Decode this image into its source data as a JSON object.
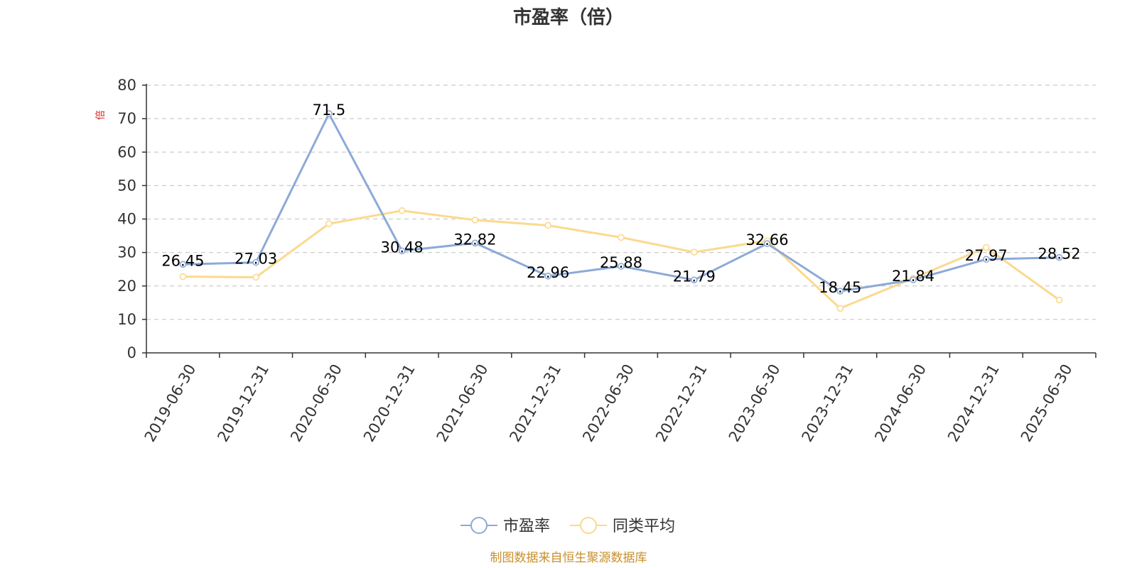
{
  "chart_data": {
    "type": "line",
    "title": "市盈率（倍）",
    "ylabel": "倍",
    "ylim": [
      0,
      80
    ],
    "yticks": [
      0,
      10,
      20,
      30,
      40,
      50,
      60,
      70,
      80
    ],
    "grid": true,
    "legend_position": "bottom",
    "categories": [
      "2019-06-30",
      "2019-12-31",
      "2020-06-30",
      "2020-12-31",
      "2021-06-30",
      "2021-12-31",
      "2022-06-30",
      "2022-12-31",
      "2023-06-30",
      "2023-12-31",
      "2024-06-30",
      "2024-12-31",
      "2025-06-30"
    ],
    "series": [
      {
        "name": "市盈率",
        "color": "#8caad8",
        "values": [
          26.45,
          27.03,
          71.5,
          30.48,
          32.82,
          22.96,
          25.88,
          21.79,
          32.66,
          18.45,
          21.84,
          27.97,
          28.52
        ],
        "labels": [
          "26.45",
          "27.03",
          "71.5",
          "30.48",
          "32.82",
          "22.96",
          "25.88",
          "21.79",
          "32.66",
          "18.45",
          "21.84",
          "27.97",
          "28.52"
        ]
      },
      {
        "name": "同类平均",
        "color": "#fbd98e",
        "values": [
          22.8,
          22.6,
          38.6,
          42.5,
          39.7,
          38.1,
          34.5,
          30.1,
          33.5,
          13.3,
          22.3,
          31.5,
          15.8
        ]
      }
    ],
    "source": "制图数据来自恒生聚源数据库",
    "colors": {
      "axis": "#333333",
      "grid": "#cccccc",
      "unit": "#e02020",
      "source": "#c8902a"
    }
  }
}
